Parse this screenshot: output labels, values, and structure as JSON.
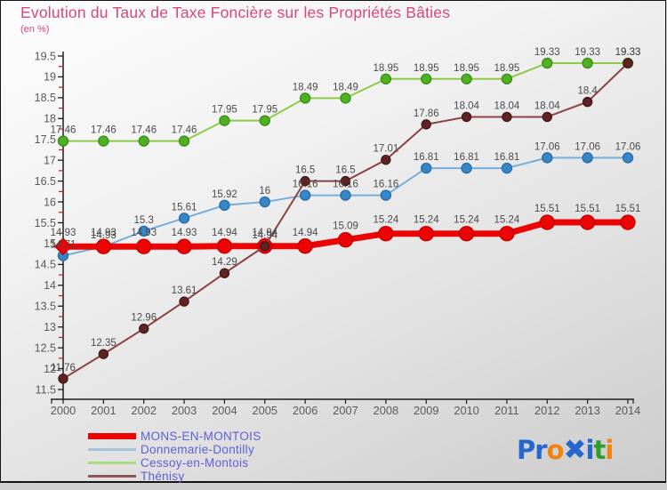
{
  "colors": {
    "title": "#d8487c",
    "subtitle": "#d8487c",
    "axis": "#1c1c1c",
    "minor_tick": "#dd1111",
    "tick_label": "#5a5a5a",
    "data_label": "#4a4a4a",
    "legend_text": "#5f5fd6",
    "background_top": "#fdfdfd",
    "background_bottom": "#cccccc"
  },
  "chart_data": {
    "type": "line",
    "title": "Evolution du Taux de Taxe Foncière sur les Propriétés Bâties",
    "subtitle": "(en %)",
    "x": [
      2000,
      2001,
      2002,
      2003,
      2004,
      2005,
      2006,
      2007,
      2008,
      2009,
      2010,
      2011,
      2012,
      2013,
      2014
    ],
    "xlabel": "",
    "ylabel": "",
    "ylim": [
      11.5,
      19.5
    ],
    "ytick_step": 0.5,
    "grid": false,
    "legend_position": "bottom-left",
    "draw_order": [
      1,
      2,
      0,
      3
    ],
    "series": [
      {
        "name": "MONS-EN-MONTOIS",
        "values": [
          14.93,
          14.93,
          14.93,
          14.93,
          14.94,
          14.94,
          14.94,
          15.09,
          15.24,
          15.24,
          15.24,
          15.24,
          15.51,
          15.51,
          15.51
        ],
        "line_color": "#ec0404",
        "line_width": 7,
        "marker_fill": "#ec0404",
        "marker_stroke": "#c40000",
        "marker_radius": 8,
        "first_marker": "diamond",
        "label_dy": -12
      },
      {
        "name": "Donnemarie-Dontilly",
        "values": [
          14.71,
          14.93,
          15.3,
          15.61,
          15.92,
          16,
          16.16,
          16.16,
          16.16,
          16.81,
          16.81,
          16.81,
          17.06,
          17.06,
          17.06
        ],
        "line_color": "#76aedb",
        "line_width": 2,
        "marker_fill": "#3587c8",
        "marker_stroke": "#2a6da6",
        "marker_radius": 5.5,
        "first_marker": "circle",
        "label_dy": -9
      },
      {
        "name": "Cessoy-en-Montois",
        "values": [
          17.46,
          17.46,
          17.46,
          17.46,
          17.95,
          17.95,
          18.49,
          18.49,
          18.95,
          18.95,
          18.95,
          18.95,
          19.33,
          19.33,
          19.33
        ],
        "line_color": "#8ccc45",
        "line_width": 2,
        "marker_fill": "#4eb122",
        "marker_stroke": "#3e8d1c",
        "marker_radius": 5.5,
        "first_marker": "circle",
        "label_dy": -9
      },
      {
        "name": "Thénisy",
        "values": [
          11.76,
          12.35,
          12.96,
          13.61,
          14.29,
          14.94,
          16.5,
          16.5,
          17.01,
          17.86,
          18.04,
          18.04,
          18.04,
          18.4,
          19.33
        ],
        "line_color": "#8a4242",
        "line_width": 2,
        "marker_fill": "#5e2424",
        "marker_stroke": "#471818",
        "marker_radius": 5,
        "first_marker": "circle",
        "label_dy": -9
      }
    ]
  },
  "legend": {
    "items": [
      {
        "label": "MONS-EN-MONTOIS",
        "color": "#ec0404",
        "thick": true
      },
      {
        "label": "Donnemarie-Dontilly",
        "color": "#a3c3dc",
        "thick": false
      },
      {
        "label": "Cessoy-en-Montois",
        "color": "#a9dc80",
        "thick": false
      },
      {
        "label": "Thénisy",
        "color": "#8f5456",
        "thick": false
      }
    ]
  },
  "logo": {
    "letters": [
      {
        "text": "P",
        "color": "#2765cf",
        "x": false
      },
      {
        "text": "r",
        "color": "#2765cf",
        "x": false
      },
      {
        "text": "o",
        "color": "#f0830f",
        "x": false
      },
      {
        "text": "✖",
        "color": "#2765cf",
        "x": true
      },
      {
        "text": "i",
        "color": "#2765cf",
        "x": false
      },
      {
        "text": "t",
        "color": "#2f9e2f",
        "x": false
      },
      {
        "text": "i",
        "color": "#f0830f",
        "x": false
      }
    ]
  }
}
